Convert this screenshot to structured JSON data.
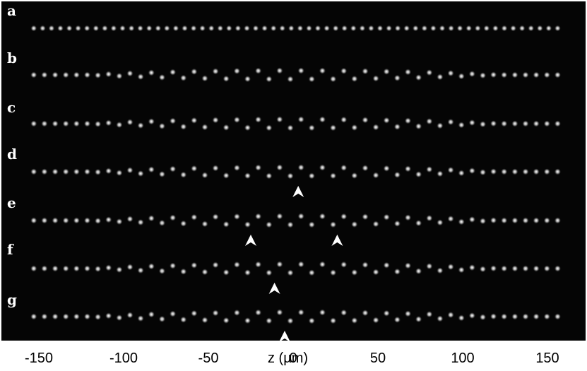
{
  "rows": [
    {
      "label": "a",
      "pattern": "linear"
    },
    {
      "label": "b",
      "pattern": "zigzag"
    },
    {
      "label": "c",
      "pattern": "zigzag"
    },
    {
      "label": "d",
      "pattern": "zigzag-defect"
    },
    {
      "label": "e",
      "pattern": "zigzag-defect"
    },
    {
      "label": "f",
      "pattern": "zigzag-defect"
    },
    {
      "label": "g",
      "pattern": "zigzag-defect"
    }
  ],
  "axis": {
    "title": "z (µm)",
    "ticks": [
      "-150",
      "-100",
      "-50",
      "0",
      "50",
      "100",
      "150"
    ],
    "tick_values": [
      -150,
      -100,
      -50,
      0,
      50,
      100,
      150
    ],
    "range": [
      -157,
      160
    ]
  },
  "defect_markers": [
    {
      "row": "d",
      "z": 3
    },
    {
      "row": "e",
      "z": -25
    },
    {
      "row": "e",
      "z": 26
    },
    {
      "row": "f",
      "z": -11
    },
    {
      "row": "g",
      "z": -5
    }
  ],
  "colors": {
    "background": "#050505",
    "ion": "#e8e8e8",
    "marker": "#ffffff"
  }
}
